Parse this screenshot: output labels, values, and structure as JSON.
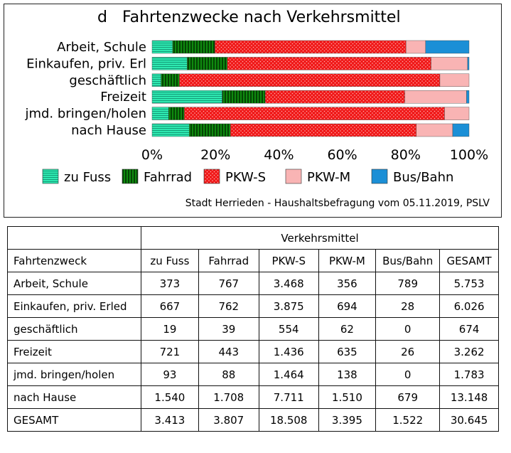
{
  "chart_data": {
    "type": "bar",
    "orientation": "horizontal",
    "stacked": "percent",
    "panel_letter": "d",
    "title": "Fahrtenzwecke nach Verkehrsmittel",
    "categories": [
      "Arbeit, Schule",
      "Einkaufen, priv. Erl",
      "geschäftlich",
      "Freizeit",
      "jmd. bringen/holen",
      "nach Hause"
    ],
    "series": [
      {
        "name": "zu Fuss",
        "color": "#2ee8b0",
        "pattern": "horizontal-lines",
        "values": [
          373,
          667,
          19,
          721,
          93,
          1540
        ]
      },
      {
        "name": "Fahrrad",
        "color": "#0a7a0a",
        "pattern": "vertical-lines",
        "values": [
          767,
          762,
          39,
          443,
          88,
          1708
        ]
      },
      {
        "name": "PKW-S",
        "color": "#f01818",
        "pattern": "dots",
        "values": [
          3468,
          3875,
          554,
          1436,
          1464,
          7711
        ]
      },
      {
        "name": "PKW-M",
        "color": "#f9b4b4",
        "pattern": "solid",
        "values": [
          356,
          694,
          62,
          635,
          138,
          1510
        ]
      },
      {
        "name": "Bus/Bahn",
        "color": "#1b8fd6",
        "pattern": "solid",
        "values": [
          789,
          28,
          0,
          26,
          0,
          679
        ]
      }
    ],
    "xlim": [
      0,
      100
    ],
    "x_ticks": [
      "0%",
      "20%",
      "40%",
      "60%",
      "80%",
      "100%"
    ],
    "legend_position": "bottom",
    "grid": false
  },
  "source": "Stadt Herrieden - Haushaltsbefragung vom 05.11.2019, PSLV",
  "table": {
    "group_header": "Verkehrsmittel",
    "row_header": "Fahrtenzweck",
    "columns": [
      "zu Fuss",
      "Fahrrad",
      "PKW-S",
      "PKW-M",
      "Bus/Bahn",
      "GESAMT"
    ],
    "rows": [
      {
        "label": "Arbeit, Schule",
        "cells": [
          "373",
          "767",
          "3.468",
          "356",
          "789",
          "5.753"
        ]
      },
      {
        "label": "Einkaufen, priv. Erled",
        "cells": [
          "667",
          "762",
          "3.875",
          "694",
          "28",
          "6.026"
        ]
      },
      {
        "label": "geschäftlich",
        "cells": [
          "19",
          "39",
          "554",
          "62",
          "0",
          "674"
        ]
      },
      {
        "label": "Freizeit",
        "cells": [
          "721",
          "443",
          "1.436",
          "635",
          "26",
          "3.262"
        ]
      },
      {
        "label": "jmd. bringen/holen",
        "cells": [
          "93",
          "88",
          "1.464",
          "138",
          "0",
          "1.783"
        ]
      },
      {
        "label": "nach Hause",
        "cells": [
          "1.540",
          "1.708",
          "7.711",
          "1.510",
          "679",
          "13.148"
        ]
      },
      {
        "label": "GESAMT",
        "cells": [
          "3.413",
          "3.807",
          "18.508",
          "3.395",
          "1.522",
          "30.645"
        ]
      }
    ]
  }
}
